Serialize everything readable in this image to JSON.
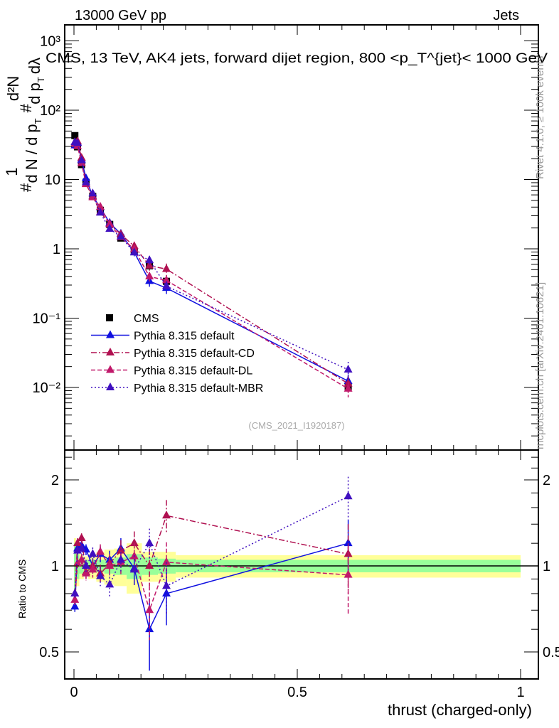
{
  "header": {
    "left": "13000 GeV pp",
    "right": "Jets"
  },
  "side_notes": {
    "rivet": "Rivet 4.1.0, ≥ 100k events",
    "mcplots": "mcplots.cern.ch [arXiv:2401.10621]"
  },
  "analysis_id": "(CMS_2021_I1920187)",
  "chart_data": [
    {
      "type": "line",
      "title": "CMS, 13 TeV, AK4 jets, forward dijet region, 800 <p_T^{jet}< 1000 GeV",
      "title_parts": {
        "main": "CMS, 13 TeV, AK4 jets, forward dijet region, 800 <p",
        "sup": "{jet",
        "sub": "T",
        "tail": "}< 1000 GeV"
      },
      "ylabel": "1/(dN/dp_T) d²N/(dp_T dλ)",
      "ylabel_parts": {
        "a": "1",
        "b": "d N / d p",
        "c": "T",
        "d": "d²N",
        "e": "d p",
        "f": "T",
        "g": "dλ",
        "hash": "#"
      },
      "yscale": "log",
      "ylim": [
        0.0013,
        1700
      ],
      "yticks": [
        {
          "v": 0.01,
          "label": "10⁻²"
        },
        {
          "v": 0.1,
          "label": "10⁻¹"
        },
        {
          "v": 1,
          "label": "1"
        },
        {
          "v": 10,
          "label": "10"
        },
        {
          "v": 100,
          "label": "10²"
        },
        {
          "v": 1000,
          "label": "10³"
        }
      ],
      "xlim": [
        -0.02,
        1.04
      ],
      "x": [
        0.002,
        0.008,
        0.017,
        0.027,
        0.042,
        0.059,
        0.08,
        0.105,
        0.135,
        0.169,
        0.207,
        0.614
      ],
      "series": [
        {
          "name": "CMS",
          "style": "data",
          "color": "#000000",
          "values": [
            43,
            29.6,
            16.4,
            9.1,
            5.7,
            3.6,
            2.25,
            1.43,
            0.91,
            0.57,
            0.34,
            0.0103
          ],
          "errors": [
            0.03,
            0.03,
            0.03,
            0.03,
            0.03,
            0.03,
            0.03,
            0.04,
            0.05,
            0.08,
            0.08,
            0.1
          ]
        },
        {
          "name": "Pythia 8.315 default",
          "style": "solid",
          "color": "#1010e0",
          "ratio": [
            0.72,
            1.15,
            1.18,
            1.14,
            1.0,
            1.1,
            1.05,
            1.15,
            0.98,
            0.6,
            0.8,
            1.2
          ],
          "ratio_errors": [
            0.03,
            0.05,
            0.05,
            0.05,
            0.06,
            0.07,
            0.08,
            0.1,
            0.12,
            0.17,
            0.18,
            0.25
          ]
        },
        {
          "name": "Pythia 8.315 default-CD",
          "style": "dashdot",
          "color": "#b01050",
          "ratio": [
            0.8,
            1.2,
            1.25,
            0.95,
            1.0,
            0.94,
            1.02,
            1.13,
            1.2,
            1.0,
            1.5,
            1.1
          ],
          "ratio_errors": [
            0.03,
            0.05,
            0.05,
            0.05,
            0.06,
            0.07,
            0.08,
            0.1,
            0.12,
            0.15,
            0.2,
            0.3
          ]
        },
        {
          "name": "Pythia 8.315 default-DL",
          "style": "dashed",
          "color": "#c0186a",
          "ratio": [
            0.76,
            1.02,
            1.05,
            0.94,
            0.97,
            1.12,
            1.0,
            1.03,
            1.08,
            0.7,
            1.03,
            0.93
          ],
          "ratio_errors": [
            0.03,
            0.05,
            0.05,
            0.05,
            0.06,
            0.07,
            0.08,
            0.1,
            0.12,
            0.15,
            0.18,
            0.25
          ]
        },
        {
          "name": "Pythia 8.315 default-MBR",
          "style": "dotted",
          "color": "#4010c0",
          "ratio": [
            0.8,
            1.13,
            1.15,
            1.0,
            1.1,
            0.92,
            0.86,
            1.05,
            0.97,
            1.2,
            0.85,
            1.75
          ],
          "ratio_errors": [
            0.03,
            0.05,
            0.05,
            0.05,
            0.06,
            0.07,
            0.08,
            0.1,
            0.12,
            0.15,
            0.18,
            0.3
          ]
        }
      ]
    },
    {
      "type": "line",
      "ylabel": "Ratio to CMS",
      "xlabel": "thrust (charged-only)",
      "yscale": "log",
      "ylim": [
        0.4,
        2.54
      ],
      "yticks": [
        {
          "v": 0.5,
          "label": "0.5"
        },
        {
          "v": 1,
          "label": "1"
        },
        {
          "v": 2,
          "label": "2"
        }
      ],
      "xticks": [
        {
          "v": 0,
          "label": "0"
        },
        {
          "v": 0.5,
          "label": "0.5"
        },
        {
          "v": 1,
          "label": "1"
        }
      ],
      "bin_edges": [
        0,
        0.005,
        0.012,
        0.022,
        0.032,
        0.05,
        0.068,
        0.09,
        0.118,
        0.152,
        0.188,
        0.228,
        1.0
      ],
      "band_stat": [
        0.2,
        0.1,
        0.06,
        0.05,
        0.05,
        0.05,
        0.06,
        0.07,
        0.1,
        0.07,
        0.06,
        0.05
      ],
      "band_total": [
        0.25,
        0.15,
        0.1,
        0.08,
        0.1,
        0.12,
        0.14,
        0.15,
        0.2,
        0.12,
        0.12,
        0.09
      ]
    }
  ],
  "legend": {
    "position": "left-middle"
  }
}
